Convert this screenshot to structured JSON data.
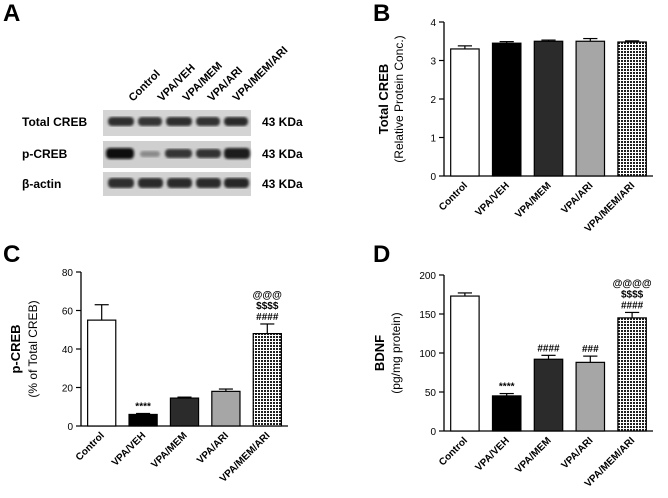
{
  "panels": {
    "A": {
      "letter": "A",
      "lanes": [
        "Control",
        "VPA/VEH",
        "VPA/MEM",
        "VPA/ARI",
        "VPA/MEM/ARI"
      ],
      "rows": [
        {
          "label": "Total CREB",
          "size": "43 KDa"
        },
        {
          "label": "p-CREB",
          "size": "43 KDa"
        },
        {
          "label": "β-actin",
          "size": "43 KDa"
        }
      ]
    },
    "B": {
      "letter": "B"
    },
    "C": {
      "letter": "C"
    },
    "D": {
      "letter": "D"
    }
  },
  "colors": {
    "control": "#ffffff",
    "veh": "#000000",
    "mem": "#2b2b2b",
    "ari": "#a6a6a6",
    "memari": "#3a3a3a"
  },
  "chart_data": [
    {
      "id": "B",
      "type": "bar",
      "categories": [
        "Control",
        "VPA/VEH",
        "VPA/MEM",
        "VPA/ARI",
        "VPA/MEM/ARI"
      ],
      "values": [
        3.3,
        3.45,
        3.5,
        3.5,
        3.48
      ],
      "errors": [
        0.08,
        0.04,
        0.03,
        0.07,
        0.03
      ],
      "annotations": [
        [],
        [],
        [],
        [],
        []
      ],
      "ylabel": "Total CREB",
      "ylabel2": "(Relative Protein Conc.)",
      "ylim": [
        0,
        4
      ],
      "yticks": [
        0,
        1,
        2,
        3,
        4
      ]
    },
    {
      "id": "C",
      "type": "bar",
      "categories": [
        "Control",
        "VPA/VEH",
        "VPA/MEM",
        "VPA/ARI",
        "VPA/MEM/ARI"
      ],
      "values": [
        55,
        6,
        14.5,
        18,
        48
      ],
      "errors": [
        8,
        0.5,
        0.5,
        1.2,
        5
      ],
      "annotations": [
        [],
        [
          "****"
        ],
        [],
        [],
        [
          "####",
          "$$$$",
          "@@@"
        ]
      ],
      "ylabel": "p-CREB",
      "ylabel2": "(% of Total CREB)",
      "ylim": [
        0,
        80
      ],
      "yticks": [
        0,
        20,
        40,
        60,
        80
      ]
    },
    {
      "id": "D",
      "type": "bar",
      "categories": [
        "Control",
        "VPA/VEH",
        "VPA/MEM",
        "VPA/ARI",
        "VPA/MEM/ARI"
      ],
      "values": [
        173,
        45,
        92,
        88,
        145
      ],
      "errors": [
        4,
        3,
        5,
        8,
        7
      ],
      "annotations": [
        [],
        [
          "****"
        ],
        [
          "####"
        ],
        [
          "###"
        ],
        [
          "####",
          "$$$$",
          "@@@@"
        ]
      ],
      "ylabel": "BDNF",
      "ylabel2": "(pg/mg protein)",
      "ylim": [
        0,
        200
      ],
      "yticks": [
        0,
        50,
        100,
        150,
        200
      ]
    }
  ]
}
